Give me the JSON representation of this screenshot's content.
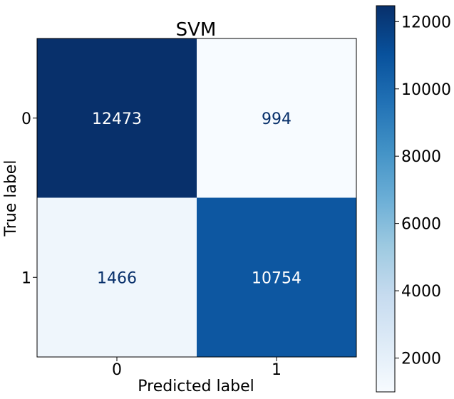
{
  "chart_data": {
    "type": "heatmap",
    "title": "SVM",
    "xlabel": "Predicted label",
    "ylabel": "True label",
    "x_categories": [
      "0",
      "1"
    ],
    "y_categories": [
      "0",
      "1"
    ],
    "values": [
      [
        12473,
        994
      ],
      [
        1466,
        10754
      ]
    ],
    "colormap": "Blues",
    "colorbar": {
      "min": 994,
      "max": 12473,
      "ticks": [
        2000,
        4000,
        6000,
        8000,
        10000,
        12000
      ]
    },
    "colors": {
      "low": "#f7fbff",
      "high": "#08306b",
      "text_on_dark": "#ffffff",
      "text_on_light": "#08306b"
    }
  }
}
